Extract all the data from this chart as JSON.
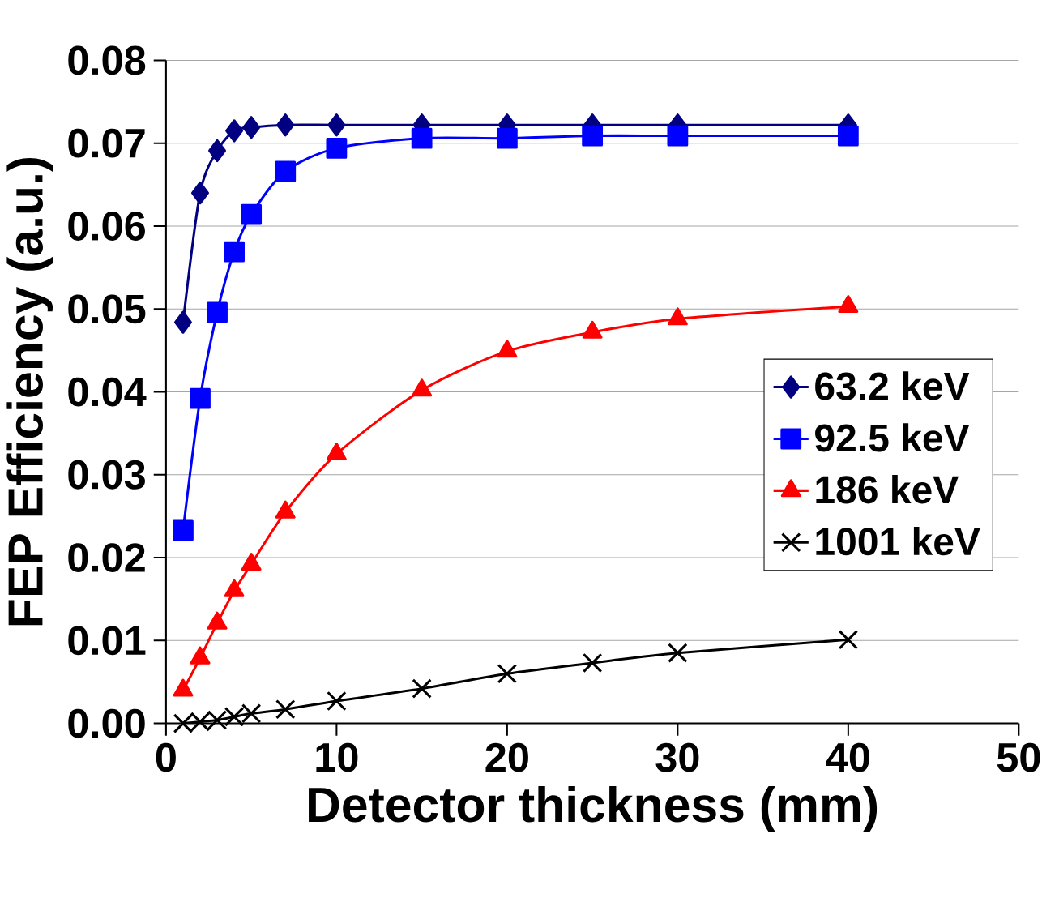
{
  "chart_data": {
    "type": "line",
    "xlabel": "Detector thickness (mm)",
    "ylabel": "FEP Efficiency (a.u.)",
    "x": [
      1,
      2,
      3,
      4,
      5,
      7,
      10,
      15,
      20,
      25,
      30,
      40
    ],
    "series": [
      {
        "name": "63.2 keV",
        "color": "#000080",
        "marker": "diamond",
        "values": [
          0.0484,
          0.064,
          0.0691,
          0.0715,
          0.0719,
          0.0722,
          0.0722,
          0.0722,
          0.0722,
          0.0722,
          0.0722,
          0.0722
        ]
      },
      {
        "name": "92.5 keV",
        "color": "#0000ff",
        "marker": "square",
        "values": [
          0.0233,
          0.0392,
          0.0496,
          0.0569,
          0.0614,
          0.0666,
          0.0694,
          0.0706,
          0.0706,
          0.0709,
          0.0709,
          0.0709
        ]
      },
      {
        "name": "186 keV",
        "color": "#ff0000",
        "marker": "triangle",
        "values": [
          0.004,
          0.0079,
          0.0121,
          0.016,
          0.0192,
          0.0255,
          0.0325,
          0.0402,
          0.0449,
          0.0472,
          0.0488,
          0.0503
        ]
      },
      {
        "name": "1001 keV",
        "color": "#000000",
        "marker": "cross",
        "values": [
          0.0,
          0.0002,
          0.0004,
          0.0008,
          0.0012,
          0.0017,
          0.0027,
          0.0042,
          0.006,
          0.0073,
          0.0085,
          0.0101
        ]
      }
    ],
    "xlim": [
      0,
      50
    ],
    "ylim": [
      0,
      0.08
    ],
    "xticks": [
      0,
      10,
      20,
      30,
      40,
      50
    ],
    "yticks": [
      {
        "value": 0,
        "label": "0.00"
      },
      0.01,
      0.02,
      0.03,
      0.04,
      0.05,
      0.06,
      0.07,
      0.08
    ],
    "grid": "y",
    "legend": "right",
    "line_style": "solid"
  }
}
